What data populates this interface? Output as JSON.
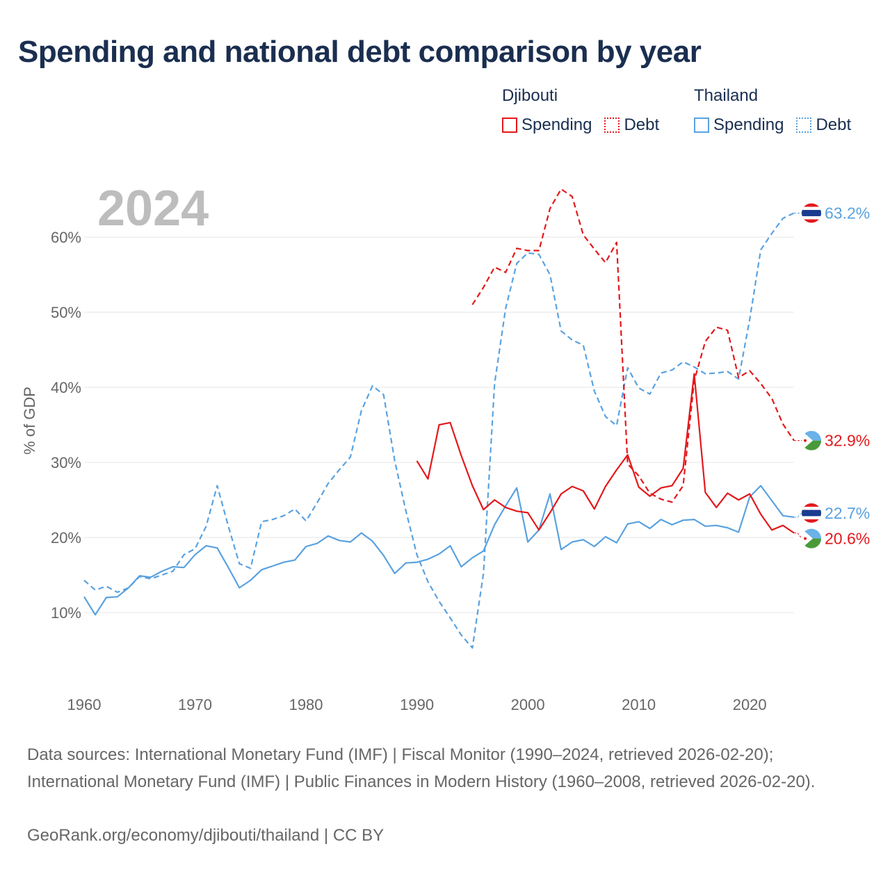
{
  "title": "Spending and national debt comparison by year",
  "legend": {
    "groups": [
      {
        "country": "Djibouti",
        "spending_label": "Spending",
        "debt_label": "Debt",
        "color": "#e3191c"
      },
      {
        "country": "Thailand",
        "spending_label": "Spending",
        "debt_label": "Debt",
        "color": "#5aa2e0"
      }
    ]
  },
  "footer": {
    "sources": "Data sources: International Monetary Fund (IMF) | Fiscal Monitor (1990–2024, retrieved 2026-02-20); International Monetary Fund (IMF) | Public Finances in Modern History (1960–2008, retrieved 2026-02-20).",
    "credit": "GeoRank.org/economy/djibouti/thailand | CC BY"
  },
  "chart_data": {
    "type": "line",
    "year_watermark": "2024",
    "ylabel": "% of GDP",
    "xlabel": "",
    "xlim": [
      1960,
      2024
    ],
    "ylim": [
      0,
      68
    ],
    "x_ticks": [
      1960,
      1970,
      1980,
      1990,
      2000,
      2010,
      2020
    ],
    "y_ticks": [
      10,
      20,
      30,
      40,
      50,
      60
    ],
    "y_tick_labels": [
      "10%",
      "20%",
      "30%",
      "40%",
      "50%",
      "60%"
    ],
    "series": [
      {
        "name": "Thailand Debt",
        "country": "Thailand",
        "metric": "Debt",
        "style": "dashed",
        "color": "#5aa2e0",
        "end_label": "63.2%",
        "x": [
          1960,
          1961,
          1962,
          1963,
          1964,
          1965,
          1966,
          1967,
          1968,
          1969,
          1970,
          1971,
          1972,
          1973,
          1974,
          1975,
          1976,
          1977,
          1978,
          1979,
          1980,
          1981,
          1982,
          1983,
          1984,
          1985,
          1986,
          1987,
          1988,
          1989,
          1990,
          1991,
          1992,
          1993,
          1994,
          1995,
          1996,
          1997,
          1998,
          1999,
          2000,
          2001,
          2002,
          2003,
          2004,
          2005,
          2006,
          2007,
          2008,
          2009,
          2010,
          2011,
          2012,
          2013,
          2014,
          2015,
          2016,
          2017,
          2018,
          2019,
          2020,
          2021,
          2022,
          2023,
          2024
        ],
        "values": [
          14.3,
          13,
          13.5,
          12.7,
          13.3,
          14.8,
          14.5,
          15,
          15.5,
          17.7,
          18.5,
          21.5,
          26.9,
          21.5,
          16.5,
          15.9,
          22.1,
          22.4,
          22.9,
          23.8,
          22.2,
          24.6,
          27.2,
          29,
          30.7,
          36.9,
          40.2,
          39,
          30.2,
          23.6,
          17.7,
          14.1,
          11.5,
          9.3,
          7,
          5.3,
          15.2,
          40.5,
          50.5,
          56.5,
          57.9,
          57.7,
          55,
          47.5,
          46.3,
          45.6,
          39.5,
          36.1,
          34.9,
          42.6,
          39.9,
          39.1,
          41.9,
          42.3,
          43.4,
          42.7,
          41.8,
          41.9,
          42.1,
          41.1,
          49,
          58.3,
          60.5,
          62.5,
          63.2
        ]
      },
      {
        "name": "Thailand Spending",
        "country": "Thailand",
        "metric": "Spending",
        "style": "solid",
        "color": "#5aa2e0",
        "end_label": "22.7%",
        "x": [
          1960,
          1961,
          1962,
          1963,
          1964,
          1965,
          1966,
          1967,
          1968,
          1969,
          1970,
          1971,
          1972,
          1973,
          1974,
          1975,
          1976,
          1977,
          1978,
          1979,
          1980,
          1981,
          1982,
          1983,
          1984,
          1985,
          1986,
          1987,
          1988,
          1989,
          1990,
          1991,
          1992,
          1993,
          1994,
          1995,
          1996,
          1997,
          1998,
          1999,
          2000,
          2001,
          2002,
          2003,
          2004,
          2005,
          2006,
          2007,
          2008,
          2009,
          2010,
          2011,
          2012,
          2013,
          2014,
          2015,
          2016,
          2017,
          2018,
          2019,
          2020,
          2021,
          2022,
          2023,
          2024
        ],
        "values": [
          12.1,
          9.7,
          12,
          12.1,
          13.3,
          14.9,
          14.7,
          15.5,
          16.1,
          16,
          17.7,
          18.9,
          18.6,
          16,
          13.3,
          14.3,
          15.7,
          16.2,
          16.7,
          17,
          18.8,
          19.2,
          20.2,
          19.6,
          19.4,
          20.6,
          19.5,
          17.6,
          15.2,
          16.6,
          16.7,
          17.1,
          17.8,
          18.9,
          16.1,
          17.3,
          18.2,
          21.7,
          24.2,
          26.6,
          19.4,
          21,
          25.8,
          18.4,
          19.4,
          19.7,
          18.8,
          20.1,
          19.3,
          21.8,
          22.1,
          21.2,
          22.4,
          21.7,
          22.3,
          22.4,
          21.5,
          21.6,
          21.3,
          20.7,
          25.4,
          26.9,
          24.9,
          22.9,
          22.7
        ]
      },
      {
        "name": "Djibouti Debt",
        "country": "Djibouti",
        "metric": "Debt",
        "style": "dashed",
        "color": "#e3191c",
        "end_label": "32.9%",
        "x": [
          1995,
          1996,
          1997,
          1998,
          1999,
          2000,
          2001,
          2002,
          2003,
          2004,
          2005,
          2006,
          2007,
          2008,
          2009,
          2010,
          2011,
          2012,
          2013,
          2014,
          2015,
          2016,
          2017,
          2018,
          2019,
          2020,
          2021,
          2022,
          2023,
          2024
        ],
        "values": [
          51,
          53.3,
          56,
          55.3,
          58.5,
          58.2,
          58.2,
          63.8,
          66.4,
          65.4,
          60.3,
          58.4,
          56.6,
          59.3,
          29.8,
          28.2,
          25.9,
          25.1,
          24.7,
          26.9,
          40.9,
          46.1,
          48,
          47.6,
          41.3,
          42.2,
          40.5,
          38.5,
          35.1,
          32.9
        ]
      },
      {
        "name": "Djibouti Spending",
        "country": "Djibouti",
        "metric": "Spending",
        "style": "solid",
        "color": "#e3191c",
        "end_label": "20.6%",
        "x": [
          1990,
          1991,
          1992,
          1993,
          1994,
          1995,
          1996,
          1997,
          1998,
          1999,
          2000,
          2001,
          2002,
          2003,
          2004,
          2005,
          2006,
          2007,
          2008,
          2009,
          2010,
          2011,
          2012,
          2013,
          2014,
          2015,
          2016,
          2017,
          2018,
          2019,
          2020,
          2021,
          2022,
          2023,
          2024
        ],
        "values": [
          30.2,
          27.8,
          35,
          35.3,
          30.9,
          26.9,
          23.7,
          25,
          24,
          23.5,
          23.3,
          21,
          23.3,
          25.8,
          26.8,
          26.2,
          23.8,
          26.8,
          29,
          31,
          26.7,
          25.5,
          26.6,
          26.9,
          29.2,
          41.8,
          26,
          24,
          25.9,
          25,
          25.8,
          23.1,
          21,
          21.6,
          20.6
        ]
      }
    ]
  }
}
